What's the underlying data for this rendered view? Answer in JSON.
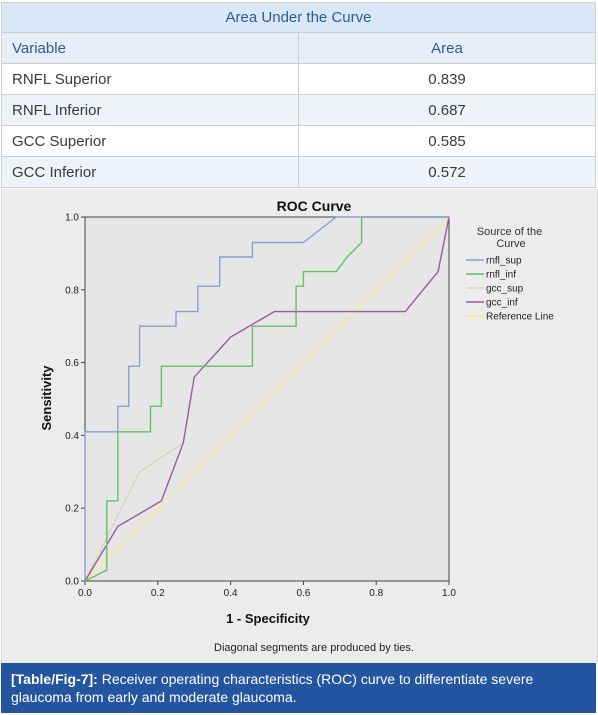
{
  "table": {
    "title": "Area Under the Curve",
    "headers": [
      "Variable",
      "Area"
    ],
    "rows": [
      {
        "variable": "RNFL Superior",
        "area": "0.839"
      },
      {
        "variable": "RNFL Inferior",
        "area": "0.687"
      },
      {
        "variable": "GCC Superior",
        "area": "0.585"
      },
      {
        "variable": "GCC Inferior",
        "area": "0.572"
      }
    ]
  },
  "chart_data": {
    "type": "line",
    "title": "ROC Curve",
    "xlabel": "1 - Specificity",
    "ylabel": "Sensitivity",
    "xlim": [
      0.0,
      1.0
    ],
    "ylim": [
      0.0,
      1.0
    ],
    "xticks": [
      "0.0",
      "0.2",
      "0.4",
      "0.6",
      "0.8",
      "1.0"
    ],
    "yticks": [
      "0.0",
      "0.2",
      "0.4",
      "0.6",
      "0.8",
      "1.0"
    ],
    "grid": false,
    "legend_title": "Source of the Curve",
    "legend_position": "right",
    "footnote": "Diagonal segments are produced by ties.",
    "series": [
      {
        "name": "rnfl_sup",
        "color": "#8a9fd4",
        "x": [
          0,
          0,
          0.09,
          0.09,
          0.12,
          0.12,
          0.15,
          0.15,
          0.25,
          0.25,
          0.31,
          0.31,
          0.37,
          0.37,
          0.46,
          0.46,
          0.6,
          0.69,
          1.0
        ],
        "y": [
          0,
          0.41,
          0.41,
          0.48,
          0.48,
          0.59,
          0.59,
          0.7,
          0.7,
          0.74,
          0.74,
          0.81,
          0.81,
          0.89,
          0.89,
          0.93,
          0.93,
          1.0,
          1.0
        ]
      },
      {
        "name": "rnfl_inf",
        "color": "#62c262",
        "x": [
          0,
          0.06,
          0.06,
          0.09,
          0.09,
          0.18,
          0.18,
          0.21,
          0.21,
          0.46,
          0.46,
          0.58,
          0.58,
          0.6,
          0.6,
          0.69,
          0.72,
          0.76,
          0.76,
          1.0
        ],
        "y": [
          0,
          0.03,
          0.22,
          0.22,
          0.41,
          0.41,
          0.48,
          0.48,
          0.59,
          0.59,
          0.7,
          0.7,
          0.81,
          0.81,
          0.85,
          0.85,
          0.89,
          0.93,
          1.0,
          1.0
        ]
      },
      {
        "name": "gcc_sup",
        "color": "#d9d6b6",
        "x": [
          0,
          0.15,
          0.27
        ],
        "y": [
          0,
          0.3,
          0.38
        ]
      },
      {
        "name": "gcc_inf",
        "color": "#9b5a9e",
        "x": [
          0,
          0.09,
          0.21,
          0.27,
          0.3,
          0.4,
          0.52,
          0.6,
          0.88,
          0.97,
          1.0
        ],
        "y": [
          0,
          0.15,
          0.22,
          0.38,
          0.56,
          0.67,
          0.74,
          0.74,
          0.74,
          0.85,
          1.0
        ]
      },
      {
        "name": "Reference Line",
        "color": "#f2ea9a",
        "x": [
          0,
          1
        ],
        "y": [
          0,
          1
        ]
      }
    ]
  },
  "caption": {
    "label": "[Table/Fig-7]:",
    "text": " Receiver operating characteristics (ROC) curve to differentiate severe glaucoma from early and moderate glaucoma."
  }
}
